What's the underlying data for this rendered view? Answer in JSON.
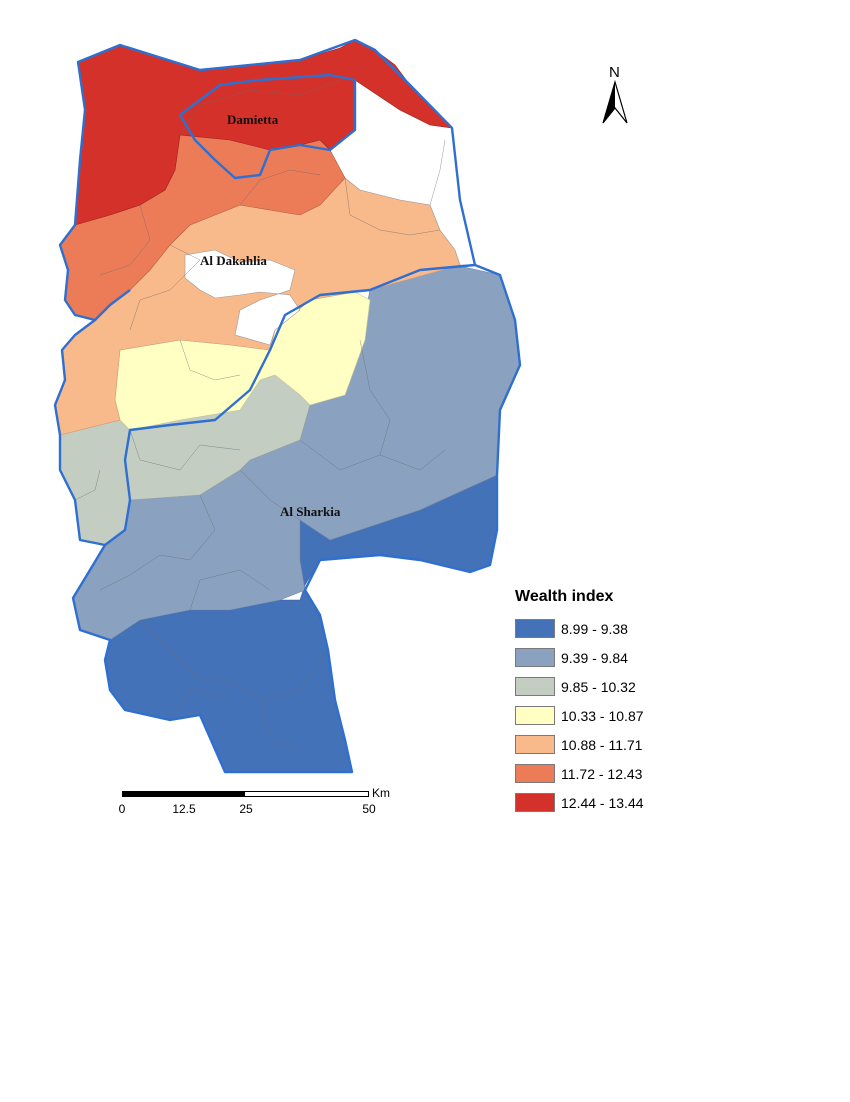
{
  "map": {
    "regions": [
      {
        "id": "damietta",
        "name": "Damietta"
      },
      {
        "id": "dakahlia",
        "name": "Al Dakahlia"
      },
      {
        "id": "sharkia",
        "name": "Al Sharkia"
      }
    ],
    "north_arrow": {
      "letter": "N"
    }
  },
  "legend": {
    "title": "Wealth index",
    "classes": [
      {
        "label": "8.99 - 9.38",
        "color": "#4472b8"
      },
      {
        "label": "9.39 - 9.84",
        "color": "#8aa1bf"
      },
      {
        "label": "9.85 - 10.32",
        "color": "#c3cdc2"
      },
      {
        "label": "10.33 - 10.87",
        "color": "#ffffc4"
      },
      {
        "label": "10.88 - 11.71",
        "color": "#f8b98b"
      },
      {
        "label": "11.72 - 12.43",
        "color": "#ec7b58"
      },
      {
        "label": "12.44 - 13.44",
        "color": "#d5312b"
      }
    ]
  },
  "scale_bar": {
    "unit": "Km",
    "ticks": [
      "0",
      "12.5",
      "25",
      "50"
    ]
  }
}
